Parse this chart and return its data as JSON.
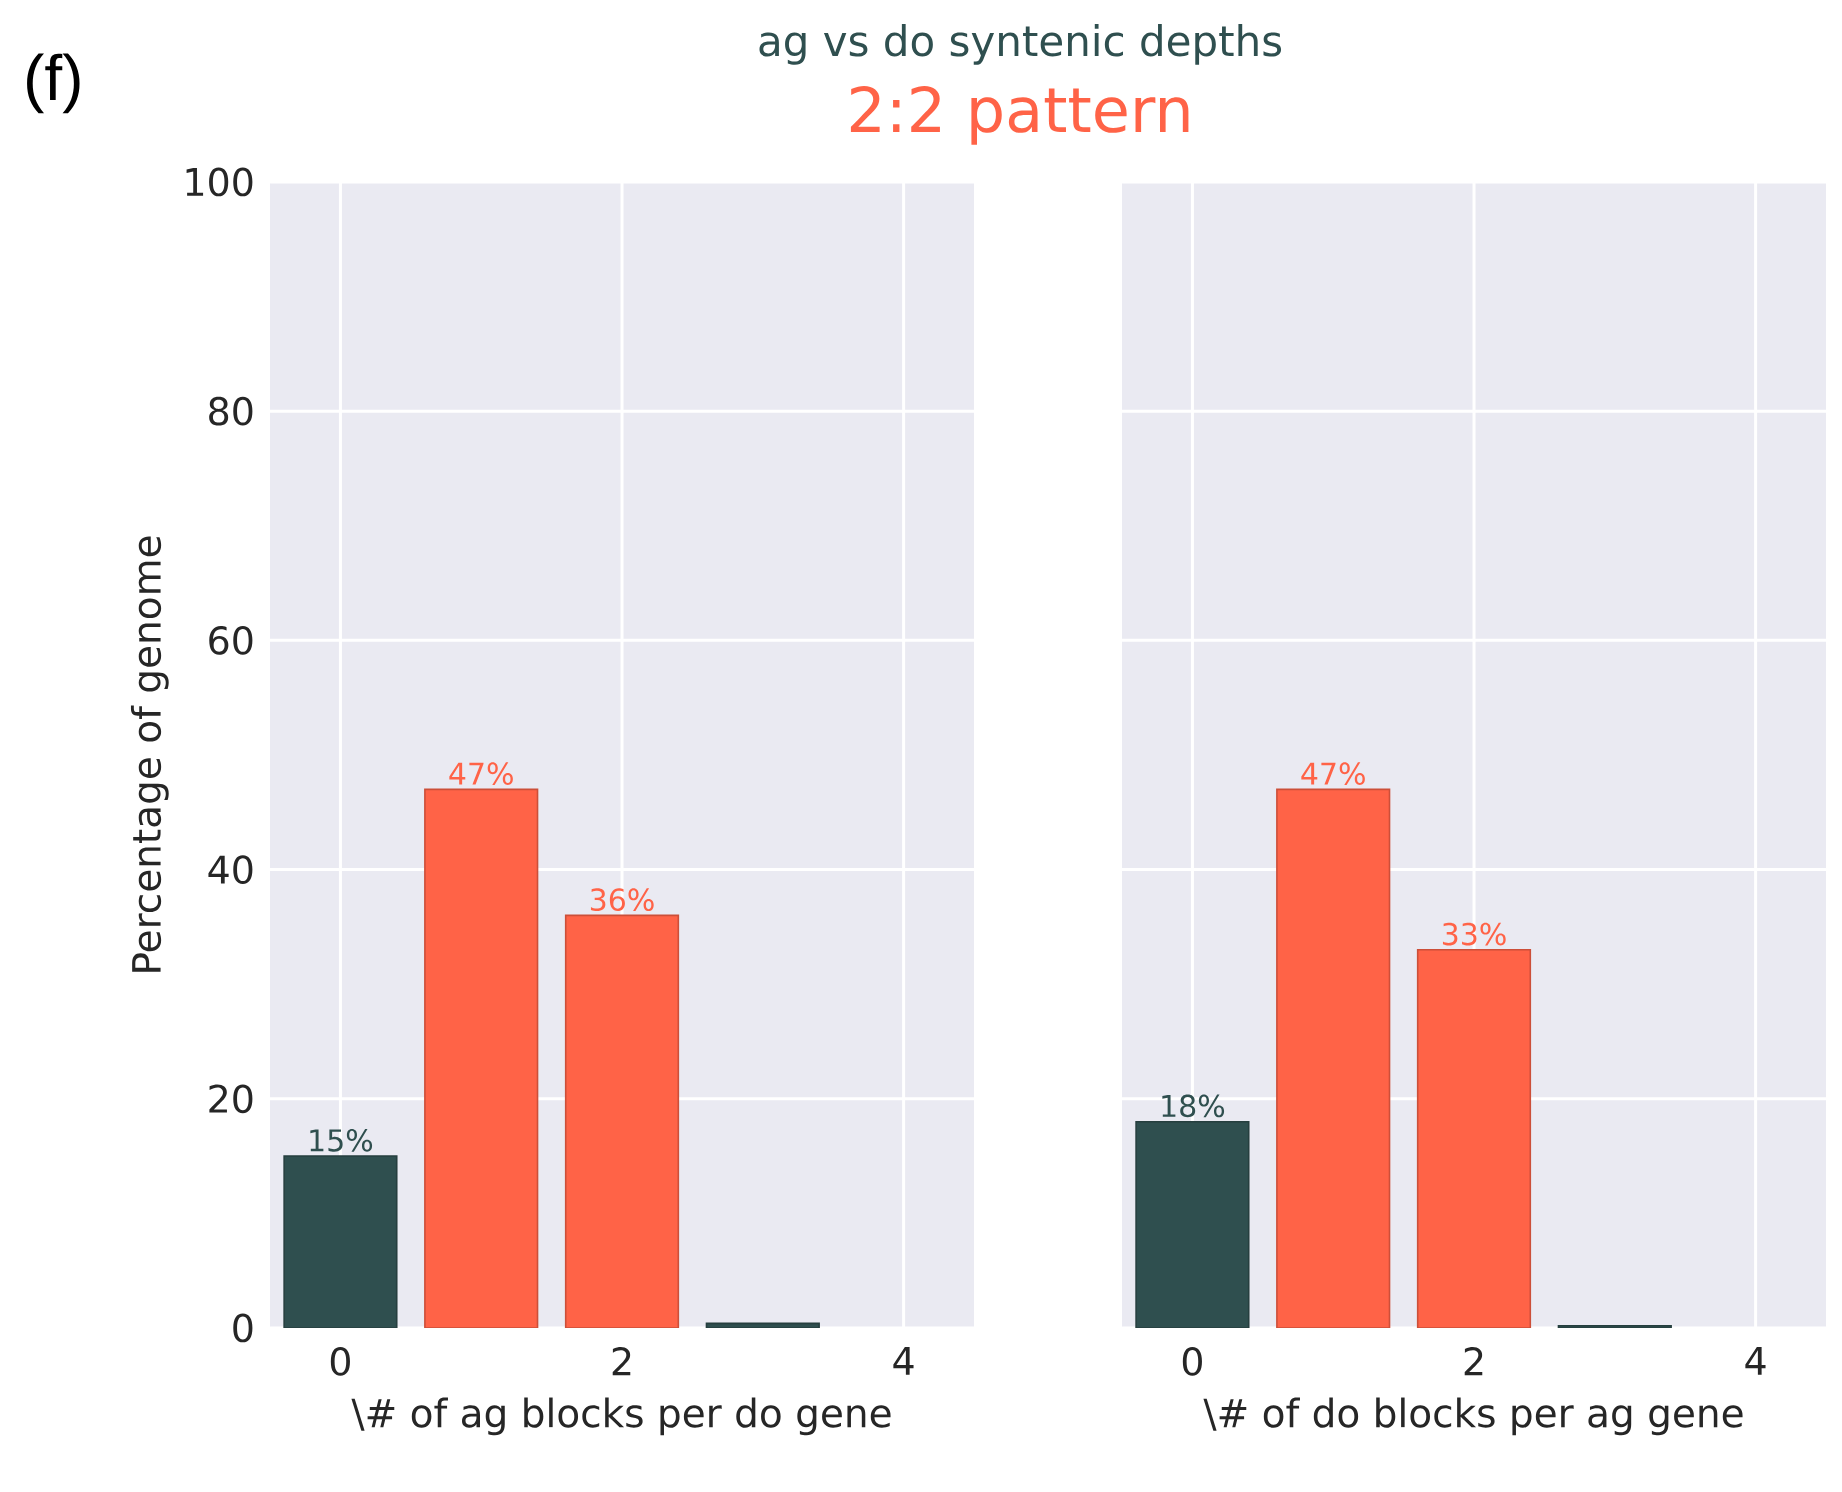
{
  "chart_data": [
    {
      "type": "bar",
      "title": "ag vs do syntenic depths",
      "subtitle": "2:2 pattern",
      "annotations": [
        "(f)"
      ],
      "x": [
        0,
        1,
        2,
        3
      ],
      "values": [
        15,
        47,
        36,
        0.4
      ],
      "colors": [
        "#2f4f4f",
        "#ff6347",
        "#ff6347",
        "#2f4f4f"
      ],
      "value_labels": [
        "15%",
        "47%",
        "36%",
        null
      ],
      "xlabel": "\\# of ag blocks per do gene",
      "ylabel": "Percentage of genome",
      "xlim": [
        -0.5,
        4.5
      ],
      "ylim": [
        0,
        100
      ],
      "xticks": [
        0,
        2,
        4
      ],
      "yticks": [
        0,
        20,
        40,
        60,
        80,
        100
      ],
      "grid": true
    },
    {
      "type": "bar",
      "x": [
        0,
        1,
        2,
        3
      ],
      "values": [
        18,
        47,
        33,
        0.2
      ],
      "colors": [
        "#2f4f4f",
        "#ff6347",
        "#ff6347",
        "#2f4f4f"
      ],
      "value_labels": [
        "18%",
        "47%",
        "33%",
        null
      ],
      "xlabel": "\\# of do blocks per ag gene",
      "xlim": [
        -0.5,
        4.5
      ],
      "ylim": [
        0,
        100
      ],
      "xticks": [
        0,
        2,
        4
      ],
      "yticks": [
        0,
        20,
        40,
        60,
        80,
        100
      ],
      "grid": true,
      "tick_labels": "x"
    }
  ]
}
